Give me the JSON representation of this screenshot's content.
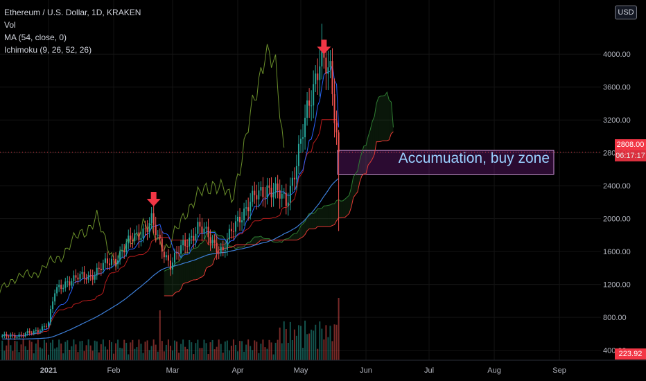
{
  "chart_data": {
    "type": "candlestick",
    "title": "Ethereum / U.S. Dollar, 1D, KRAKEN",
    "indicators": [
      "Vol",
      "MA (54, close, 0)",
      "Ichimoku (9, 26, 52, 26)"
    ],
    "currency": "USD",
    "x_ticks": [
      "2021",
      "Feb",
      "Mar",
      "Apr",
      "May",
      "Jun",
      "Jul",
      "Aug",
      "Sep"
    ],
    "y_ticks": [
      400,
      800,
      1200,
      1600,
      2000,
      2400,
      2800,
      3200,
      3600,
      4000
    ],
    "y_tick_labels": [
      "400.00",
      "800.00",
      "1200.00",
      "1600.00",
      "2000.00",
      "2400.00",
      "2800.00",
      "3200.00",
      "3600.00",
      "4000.00"
    ],
    "ylim": [
      270,
      4440
    ],
    "last_price": 2808,
    "last_price_label": "2808.00",
    "countdown_label": "06:17:17",
    "volume_label": "223.92",
    "annotation": "Accumuation, buy zone",
    "zone": {
      "from": 2540,
      "to": 2830
    },
    "arrows": [
      {
        "date": "Feb 20",
        "price": 2140
      },
      {
        "date": "May 12",
        "price": 3990
      }
    ],
    "key_points": [
      {
        "date": "Dec 10",
        "price": 560
      },
      {
        "date": "Dec 25",
        "price": 610
      },
      {
        "date": "Jan 1",
        "price": 740
      },
      {
        "date": "Jan 4",
        "price": 1100
      },
      {
        "date": "Jan 10",
        "price": 1250
      },
      {
        "date": "Jan 20",
        "price": 1300
      },
      {
        "date": "Feb 1",
        "price": 1500
      },
      {
        "date": "Feb 10",
        "price": 1750
      },
      {
        "date": "Feb 19",
        "price": 1960
      },
      {
        "date": "Feb 22",
        "price": 1750
      },
      {
        "date": "Feb 28",
        "price": 1450
      },
      {
        "date": "Mar 13",
        "price": 1900
      },
      {
        "date": "Mar 25",
        "price": 1600
      },
      {
        "date": "Apr 2",
        "price": 2050
      },
      {
        "date": "Apr 15",
        "price": 2400
      },
      {
        "date": "Apr 24",
        "price": 2200
      },
      {
        "date": "May 1",
        "price": 2900
      },
      {
        "date": "May 10",
        "price": 4000
      },
      {
        "date": "May 15",
        "price": 3700
      },
      {
        "date": "May 19",
        "price": 2808
      }
    ]
  }
}
